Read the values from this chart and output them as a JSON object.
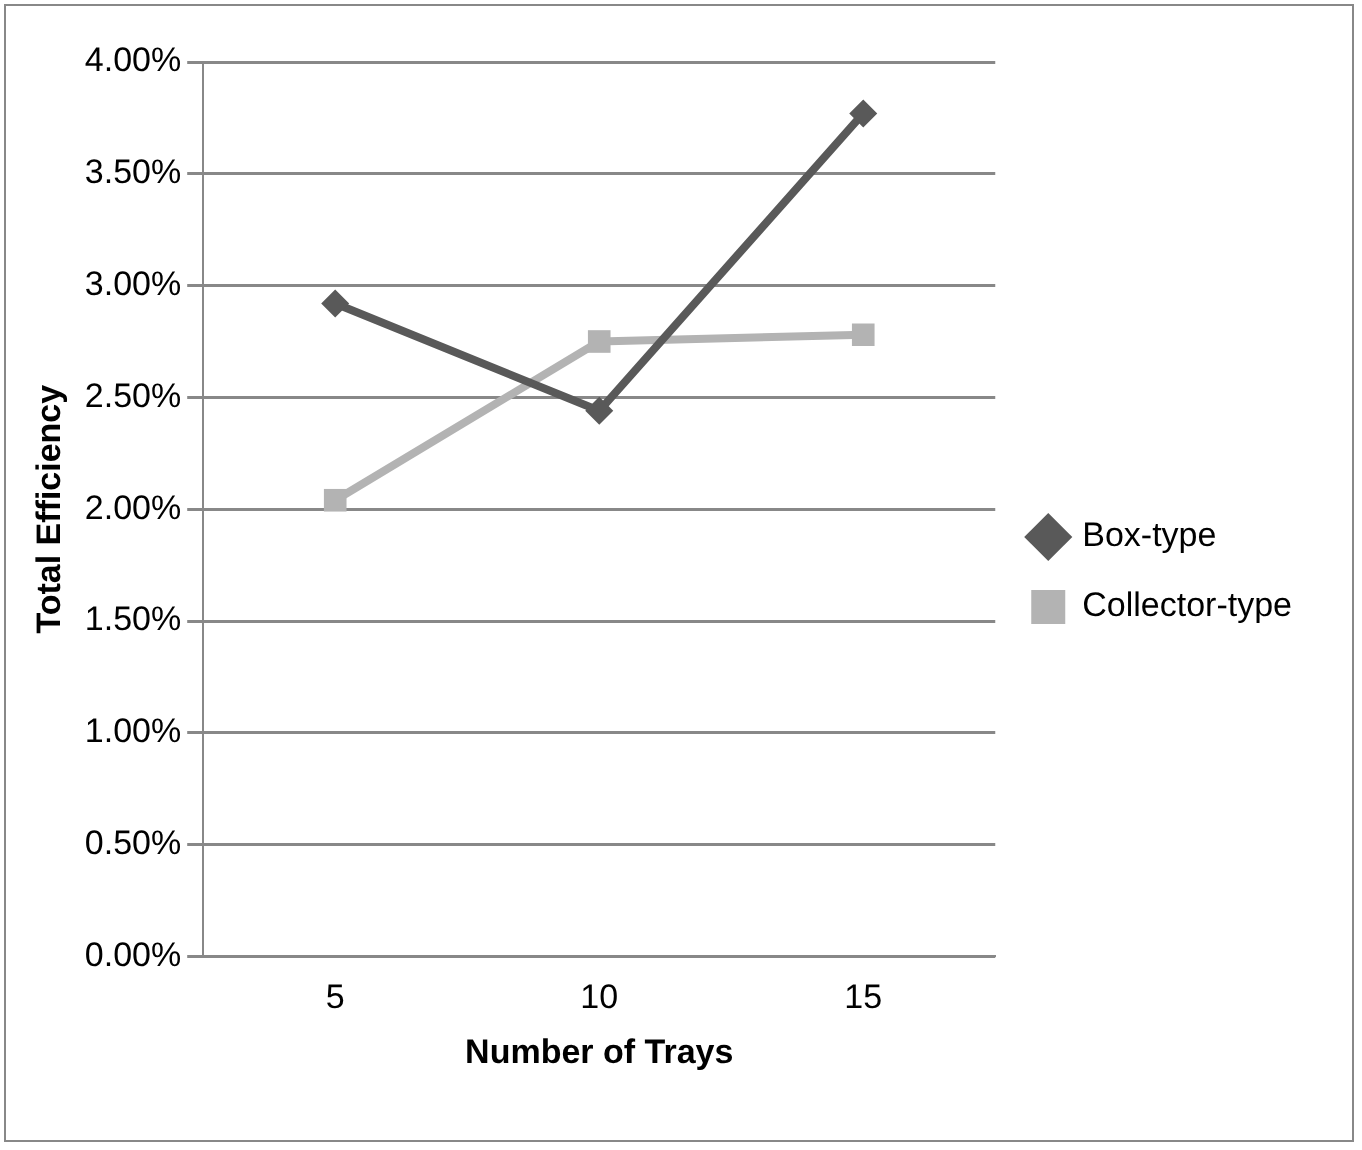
{
  "chart_data": {
    "type": "line",
    "xlabel": "Number of Trays",
    "ylabel": "Total Efficiency",
    "categories": [
      "5",
      "10",
      "15"
    ],
    "series": [
      {
        "name": "Box-type",
        "color": "#595959",
        "marker": "diamond",
        "values": [
          2.92,
          2.44,
          3.77
        ]
      },
      {
        "name": "Collector-type",
        "color": "#b3b3b3",
        "marker": "square",
        "values": [
          2.04,
          2.75,
          2.78
        ]
      }
    ],
    "ylim": [
      0,
      4
    ],
    "yticks": [
      {
        "value": 0,
        "label": "0.00%"
      },
      {
        "value": 0.5,
        "label": "0.50%"
      },
      {
        "value": 1,
        "label": "1.00%"
      },
      {
        "value": 1.5,
        "label": "1.50%"
      },
      {
        "value": 2,
        "label": "2.00%"
      },
      {
        "value": 2.5,
        "label": "2.50%"
      },
      {
        "value": 3,
        "label": "3.00%"
      },
      {
        "value": 3.5,
        "label": "3.50%"
      },
      {
        "value": 4,
        "label": "4.00%"
      }
    ],
    "grid": "y",
    "legend": "right"
  }
}
